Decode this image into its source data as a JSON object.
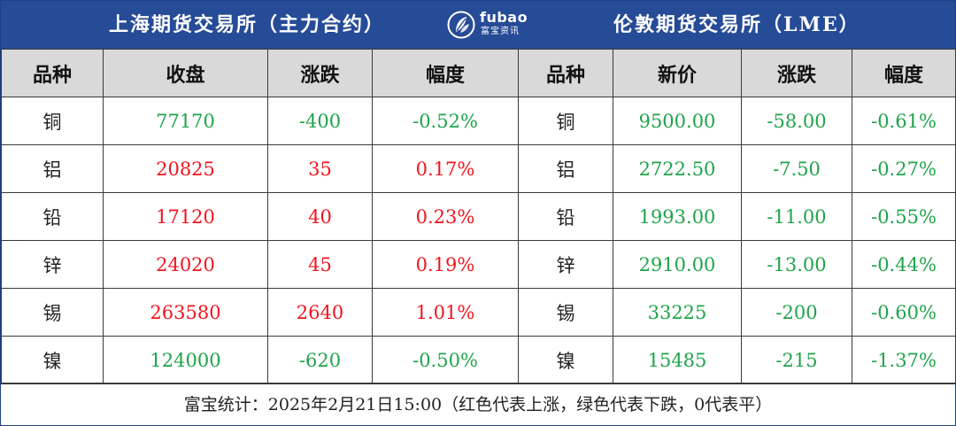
{
  "banner": {
    "left_title": "上海期货交易所（主力合约）",
    "right_title": "伦敦期货交易所（LME）",
    "logo": {
      "brand": "fubao",
      "sub": "富宝资讯",
      "icon": "leaf-logo-icon"
    }
  },
  "headers": {
    "shfe": [
      "品种",
      "收盘",
      "涨跌",
      "幅度"
    ],
    "lme": [
      "品种",
      "新价",
      "涨跌",
      "幅度"
    ]
  },
  "rows": [
    {
      "shfe": {
        "name": "铜",
        "close": "77170",
        "change": "-400",
        "pct": "-0.52%",
        "dir": "down"
      },
      "lme": {
        "name": "铜",
        "price": "9500.00",
        "change": "-58.00",
        "pct": "-0.61%",
        "dir": "down"
      }
    },
    {
      "shfe": {
        "name": "铝",
        "close": "20825",
        "change": "35",
        "pct": "0.17%",
        "dir": "up"
      },
      "lme": {
        "name": "铝",
        "price": "2722.50",
        "change": "-7.50",
        "pct": "-0.27%",
        "dir": "down"
      }
    },
    {
      "shfe": {
        "name": "铅",
        "close": "17120",
        "change": "40",
        "pct": "0.23%",
        "dir": "up"
      },
      "lme": {
        "name": "铅",
        "price": "1993.00",
        "change": "-11.00",
        "pct": "-0.55%",
        "dir": "down"
      }
    },
    {
      "shfe": {
        "name": "锌",
        "close": "24020",
        "change": "45",
        "pct": "0.19%",
        "dir": "up"
      },
      "lme": {
        "name": "锌",
        "price": "2910.00",
        "change": "-13.00",
        "pct": "-0.44%",
        "dir": "down"
      }
    },
    {
      "shfe": {
        "name": "锡",
        "close": "263580",
        "change": "2640",
        "pct": "1.01%",
        "dir": "up"
      },
      "lme": {
        "name": "锡",
        "price": "33225",
        "change": "-200",
        "pct": "-0.60%",
        "dir": "down"
      }
    },
    {
      "shfe": {
        "name": "镍",
        "close": "124000",
        "change": "-620",
        "pct": "-0.50%",
        "dir": "down"
      },
      "lme": {
        "name": "镍",
        "price": "15485",
        "change": "-215",
        "pct": "-1.37%",
        "dir": "down"
      }
    }
  ],
  "colors": {
    "header_bg": "#264b97",
    "up": "#f2141e",
    "down": "#1fa44a",
    "column_header_bg": "#d9d9d9"
  },
  "footer": "富宝统计：2025年2月21日15:00（红色代表上涨，绿色代表下跌，0代表平）"
}
